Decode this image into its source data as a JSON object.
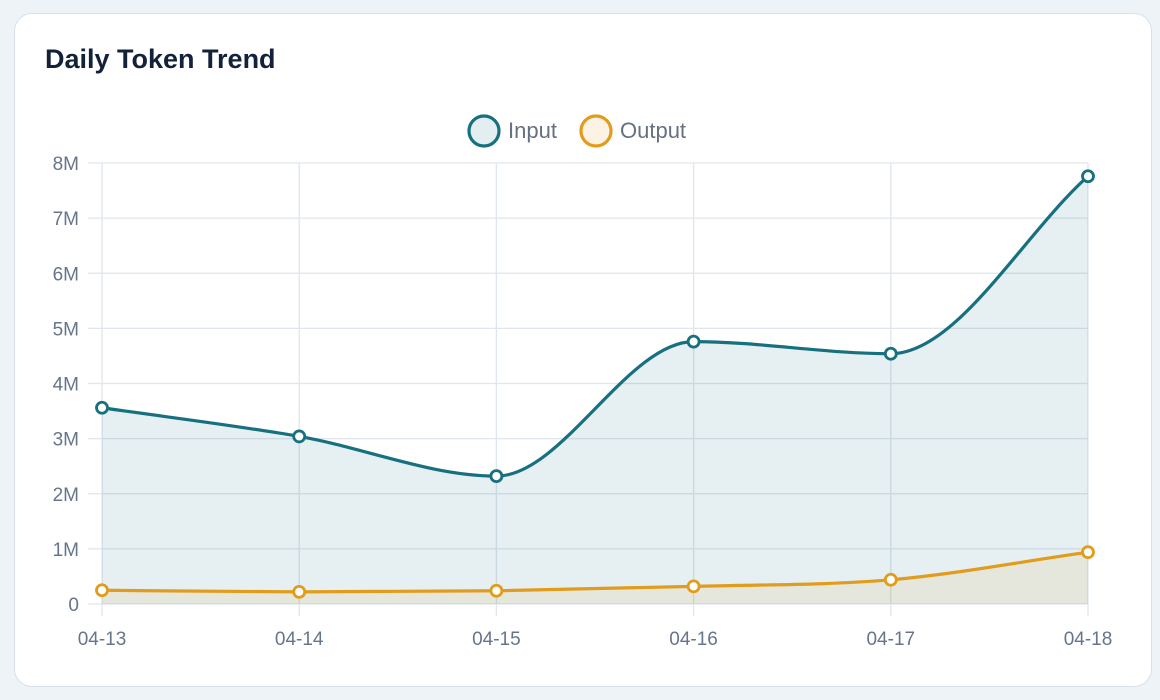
{
  "card": {
    "title": "Daily Token Trend"
  },
  "chart_data": {
    "type": "area",
    "title": "Daily Token Trend",
    "xlabel": "",
    "ylabel": "",
    "categories": [
      "04-13",
      "04-14",
      "04-15",
      "04-16",
      "04-17",
      "04-18"
    ],
    "y_ticks": [
      "0",
      "1M",
      "2M",
      "3M",
      "4M",
      "5M",
      "6M",
      "7M",
      "8M"
    ],
    "ylim": [
      0,
      8000000
    ],
    "grid": true,
    "legend_position": "top-center",
    "smooth": true,
    "series": [
      {
        "name": "Input",
        "values": [
          3560000,
          3040000,
          2320000,
          4760000,
          4540000,
          7760000
        ],
        "color": "#17707f",
        "fill": "rgba(23,112,127,0.11)"
      },
      {
        "name": "Output",
        "values": [
          250000,
          220000,
          240000,
          320000,
          440000,
          940000
        ],
        "color": "#e29c1b",
        "fill": "rgba(226,156,27,0.09)"
      }
    ]
  }
}
